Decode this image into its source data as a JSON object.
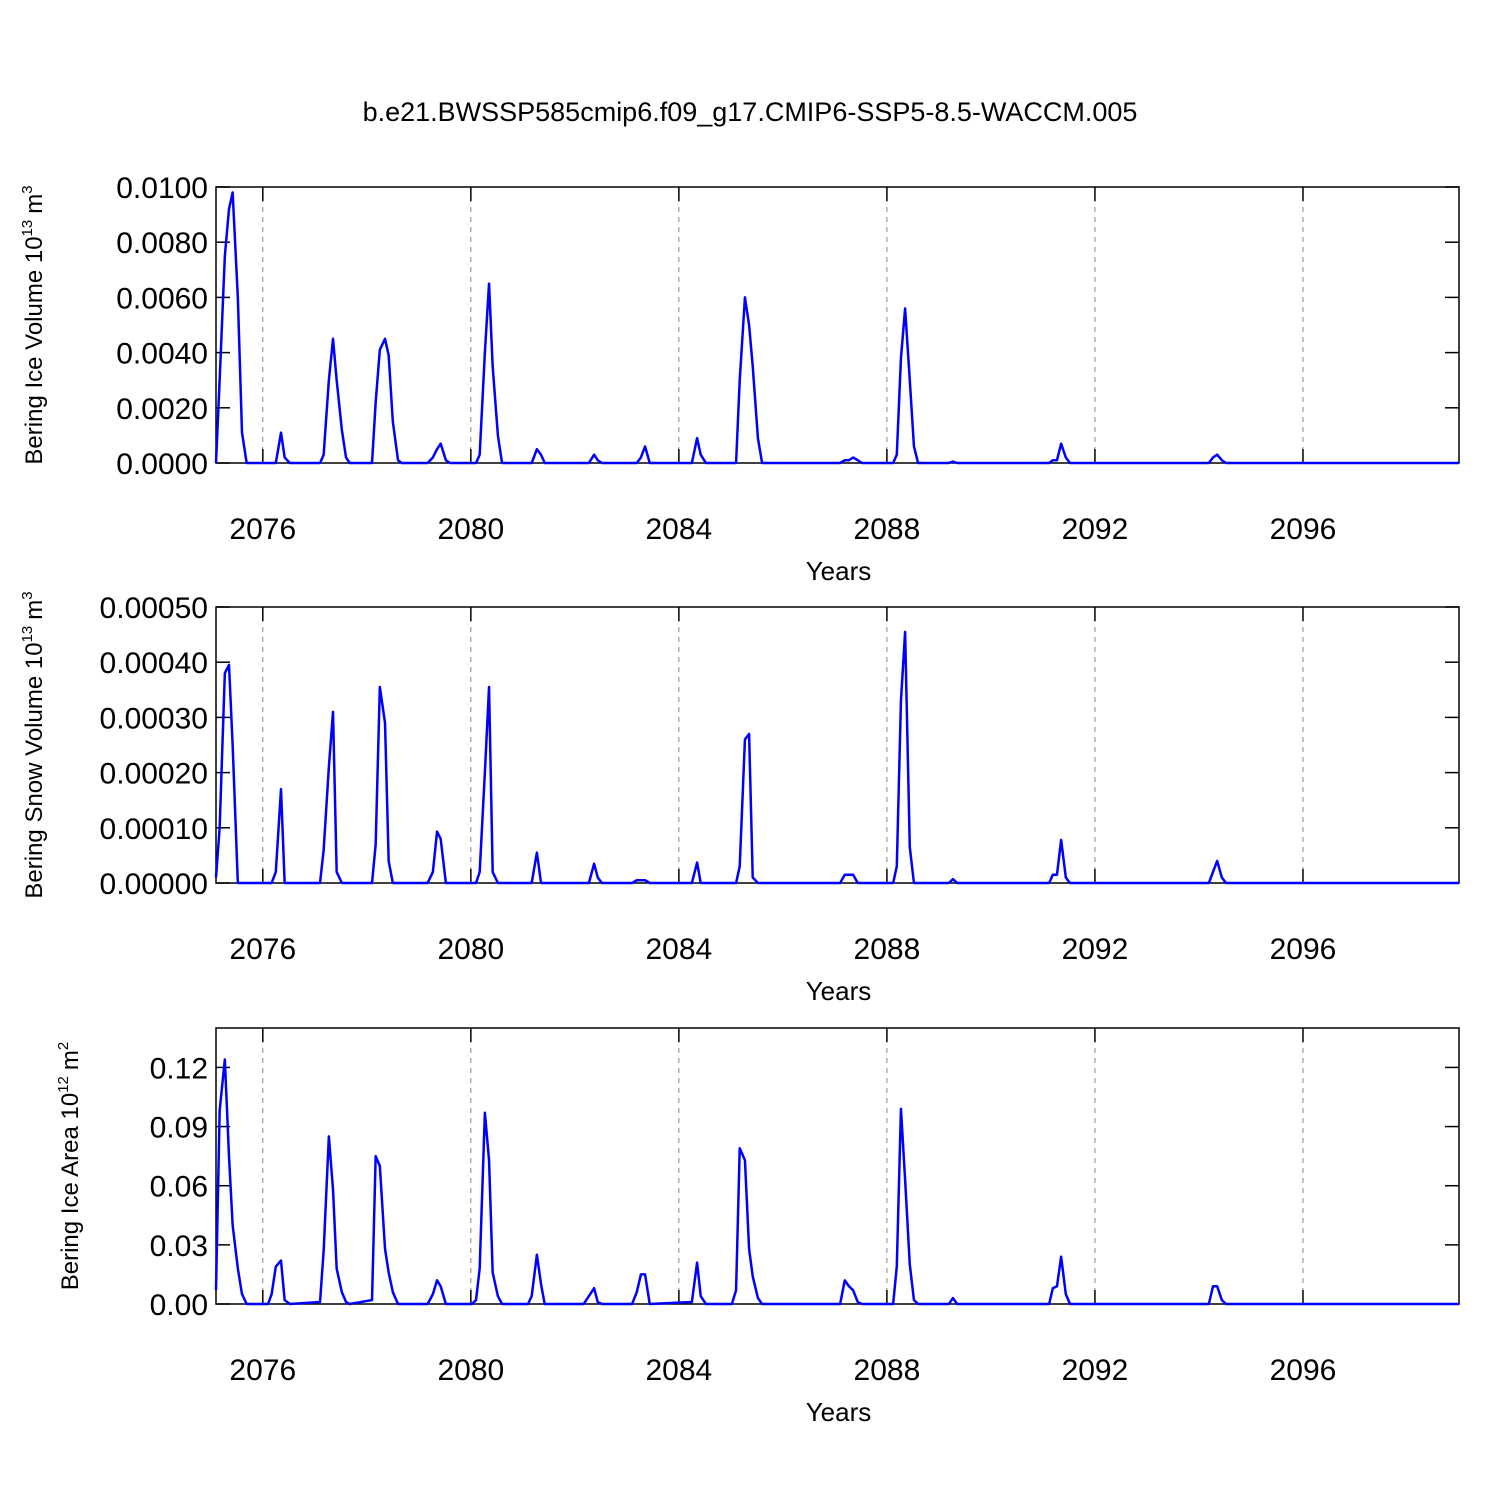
{
  "title": "b.e21.BWSSP585cmip6.f09_g17.CMIP6-SSP5-8.5-WACCM.005",
  "chart_data": [
    {
      "type": "line",
      "color": "#0000ff",
      "xlabel": "Years",
      "ylabel": {
        "text": "Bering Ice Volume 10",
        "sup": "13",
        "unit": "m",
        "unit_sup": "3"
      },
      "xlim": [
        2075.1,
        2099
      ],
      "xticks": [
        2076,
        2080,
        2084,
        2088,
        2092,
        2096
      ],
      "xgrid": true,
      "ylim": [
        0,
        0.01
      ],
      "yticks": [
        {
          "value": 0,
          "label": "0.0000"
        },
        {
          "value": 0.002,
          "label": "0.0020"
        },
        {
          "value": 0.004,
          "label": "0.0040"
        },
        {
          "value": 0.006,
          "label": "0.0060"
        },
        {
          "value": 0.008,
          "label": "0.0080"
        },
        {
          "value": 0.01,
          "label": "0.0100"
        }
      ],
      "x": [
        2075.1,
        2075.17,
        2075.27,
        2075.35,
        2075.42,
        2075.52,
        2075.6,
        2075.69,
        2076.25,
        2076.35,
        2076.42,
        2076.52,
        2077.1,
        2077.17,
        2077.27,
        2077.35,
        2077.42,
        2077.52,
        2077.6,
        2077.67,
        2078.1,
        2078.17,
        2078.25,
        2078.35,
        2078.42,
        2078.5,
        2078.6,
        2078.67,
        2079.17,
        2079.27,
        2079.35,
        2079.42,
        2079.52,
        2079.6,
        2080.1,
        2080.17,
        2080.27,
        2080.35,
        2080.42,
        2080.52,
        2080.6,
        2081.17,
        2081.27,
        2081.35,
        2081.42,
        2082.27,
        2082.37,
        2082.44,
        2082.52,
        2083.19,
        2083.27,
        2083.35,
        2083.44,
        2084.25,
        2084.35,
        2084.42,
        2084.52,
        2085.1,
        2085.17,
        2085.27,
        2085.35,
        2085.42,
        2085.52,
        2085.6,
        2087.1,
        2087.19,
        2087.27,
        2087.35,
        2087.44,
        2087.52,
        2088.12,
        2088.19,
        2088.27,
        2088.35,
        2088.44,
        2088.52,
        2088.6,
        2089.19,
        2089.27,
        2089.35,
        2091.12,
        2091.19,
        2091.27,
        2091.35,
        2091.44,
        2091.52,
        2094.19,
        2094.27,
        2094.35,
        2094.44,
        2094.52,
        2099.0
      ],
      "values": [
        0,
        0.003,
        0.0075,
        0.0092,
        0.0098,
        0.006,
        0.0011,
        0,
        0,
        0.0011,
        0.0002,
        0,
        0,
        0.0003,
        0.003,
        0.0045,
        0.003,
        0.0012,
        0.0002,
        0,
        0,
        0.0022,
        0.0041,
        0.0045,
        0.0039,
        0.0015,
        0.0001,
        0,
        0,
        0.0002,
        0.0005,
        0.0007,
        0.0001,
        0,
        0,
        0.0003,
        0.004,
        0.0065,
        0.0035,
        0.001,
        0,
        0,
        0.0005,
        0.0003,
        0,
        0,
        0.0003,
        0.0001,
        0,
        0,
        0.0002,
        0.0006,
        0,
        0,
        0.0009,
        0.0003,
        0,
        0,
        0.003,
        0.006,
        0.005,
        0.0035,
        0.0009,
        0,
        0,
        0.0001,
        0.0001,
        0.0002,
        0.0001,
        0,
        0,
        0.0003,
        0.0038,
        0.0056,
        0.003,
        0.0006,
        0,
        0,
        5e-05,
        0,
        0,
        0.0001,
        0.0001,
        0.0007,
        0.0002,
        0,
        0,
        0.0002,
        0.0003,
        0.0001,
        0,
        0
      ]
    },
    {
      "type": "line",
      "color": "#0000ff",
      "xlabel": "Years",
      "ylabel": {
        "text": "Bering Snow Volume 10",
        "sup": "13",
        "unit": "m",
        "unit_sup": "3"
      },
      "xlim": [
        2075.1,
        2099
      ],
      "xticks": [
        2076,
        2080,
        2084,
        2088,
        2092,
        2096
      ],
      "xgrid": true,
      "ylim": [
        0,
        0.0005
      ],
      "yticks": [
        {
          "value": 0,
          "label": "0.00000"
        },
        {
          "value": 0.0001,
          "label": "0.00010"
        },
        {
          "value": 0.0002,
          "label": "0.00020"
        },
        {
          "value": 0.0003,
          "label": "0.00030"
        },
        {
          "value": 0.0004,
          "label": "0.00040"
        },
        {
          "value": 0.0005,
          "label": "0.00050"
        }
      ],
      "x": [
        2075.1,
        2075.17,
        2075.27,
        2075.35,
        2075.42,
        2075.52,
        2076.17,
        2076.25,
        2076.35,
        2076.42,
        2077.1,
        2077.17,
        2077.27,
        2077.35,
        2077.42,
        2077.52,
        2078.1,
        2078.17,
        2078.25,
        2078.35,
        2078.42,
        2078.5,
        2079.17,
        2079.27,
        2079.35,
        2079.42,
        2079.52,
        2080.1,
        2080.17,
        2080.27,
        2080.35,
        2080.42,
        2080.52,
        2081.17,
        2081.27,
        2081.35,
        2082.27,
        2082.37,
        2082.44,
        2082.52,
        2083.1,
        2083.19,
        2083.35,
        2083.44,
        2084.25,
        2084.35,
        2084.42,
        2085.1,
        2085.17,
        2085.27,
        2085.35,
        2085.42,
        2085.52,
        2087.1,
        2087.19,
        2087.35,
        2087.44,
        2088.12,
        2088.19,
        2088.27,
        2088.35,
        2088.44,
        2088.52,
        2089.19,
        2089.27,
        2089.35,
        2091.12,
        2091.19,
        2091.27,
        2091.35,
        2091.44,
        2091.52,
        2094.19,
        2094.27,
        2094.35,
        2094.44,
        2094.52,
        2099.0
      ],
      "values": [
        1e-05,
        0.0001,
        0.00038,
        0.000395,
        0.00025,
        0,
        0,
        2e-05,
        0.00017,
        0,
        0,
        6e-05,
        0.00021,
        0.00031,
        2e-05,
        0,
        0,
        7e-05,
        0.000355,
        0.00029,
        4e-05,
        0,
        0,
        2e-05,
        9.3e-05,
        8e-05,
        0,
        0,
        2e-05,
        0.0002,
        0.000355,
        2e-05,
        0,
        0,
        5.5e-05,
        0,
        0,
        3.5e-05,
        1e-05,
        0,
        0,
        5e-06,
        5e-06,
        0,
        0,
        3.7e-05,
        0,
        0,
        3e-05,
        0.00026,
        0.00027,
        1e-05,
        0,
        0,
        1.5e-05,
        1.5e-05,
        0,
        0,
        3e-05,
        0.00033,
        0.000455,
        6.5e-05,
        0,
        0,
        7e-06,
        0,
        0,
        1.5e-05,
        1.5e-05,
        7.8e-05,
        1e-05,
        0,
        0,
        2e-05,
        4e-05,
        1e-05,
        0,
        0
      ]
    },
    {
      "type": "line",
      "color": "#0000ff",
      "xlabel": "Years",
      "ylabel": {
        "text": "Bering Ice Area 10",
        "sup": "12",
        "unit": "m",
        "unit_sup": "2"
      },
      "xlim": [
        2075.1,
        2099
      ],
      "xticks": [
        2076,
        2080,
        2084,
        2088,
        2092,
        2096
      ],
      "xgrid": true,
      "ylim": [
        0,
        0.14
      ],
      "yticks": [
        {
          "value": 0,
          "label": "0.00"
        },
        0.03,
        0.06,
        0.09,
        0.12
      ],
      "x": [
        2075.1,
        2075.17,
        2075.27,
        2075.35,
        2075.42,
        2075.52,
        2075.6,
        2075.69,
        2076.1,
        2076.17,
        2076.25,
        2076.35,
        2076.42,
        2076.52,
        2077.1,
        2077.17,
        2077.27,
        2077.35,
        2077.42,
        2077.52,
        2077.6,
        2077.67,
        2078.1,
        2078.17,
        2078.25,
        2078.35,
        2078.42,
        2078.5,
        2078.6,
        2079.17,
        2079.27,
        2079.35,
        2079.42,
        2079.52,
        2080.02,
        2080.1,
        2080.17,
        2080.27,
        2080.35,
        2080.42,
        2080.52,
        2080.6,
        2081.1,
        2081.17,
        2081.27,
        2081.35,
        2081.42,
        2082.17,
        2082.27,
        2082.37,
        2082.44,
        2082.52,
        2083.1,
        2083.19,
        2083.27,
        2083.35,
        2083.44,
        2084.25,
        2084.35,
        2084.42,
        2084.52,
        2085.02,
        2085.1,
        2085.17,
        2085.27,
        2085.35,
        2085.42,
        2085.52,
        2085.6,
        2087.1,
        2087.19,
        2087.27,
        2087.35,
        2087.44,
        2087.52,
        2088.12,
        2088.19,
        2088.27,
        2088.35,
        2088.44,
        2088.52,
        2088.6,
        2089.19,
        2089.27,
        2089.35,
        2091.12,
        2091.19,
        2091.27,
        2091.35,
        2091.44,
        2091.52,
        2094.19,
        2094.27,
        2094.35,
        2094.44,
        2094.52,
        2099.0
      ],
      "values": [
        0.007,
        0.098,
        0.124,
        0.075,
        0.04,
        0.018,
        0.005,
        0,
        0,
        0.005,
        0.019,
        0.022,
        0.002,
        0,
        0.001,
        0.027,
        0.085,
        0.058,
        0.018,
        0.006,
        0.001,
        0,
        0.002,
        0.075,
        0.07,
        0.028,
        0.016,
        0.006,
        0,
        0,
        0.005,
        0.012,
        0.009,
        0,
        0,
        0.002,
        0.018,
        0.097,
        0.073,
        0.016,
        0.004,
        0,
        0,
        0.004,
        0.025,
        0.01,
        0,
        0,
        0.004,
        0.008,
        0.001,
        0,
        0,
        0.006,
        0.015,
        0.015,
        0,
        0.001,
        0.021,
        0.004,
        0,
        0,
        0.007,
        0.079,
        0.073,
        0.028,
        0.014,
        0.003,
        0,
        0,
        0.012,
        0.009,
        0.007,
        0.001,
        0,
        0,
        0.019,
        0.099,
        0.063,
        0.02,
        0.002,
        0,
        0,
        0.003,
        0,
        0,
        0.008,
        0.009,
        0.024,
        0.005,
        0,
        0,
        0.009,
        0.009,
        0.002,
        0,
        0
      ]
    }
  ]
}
